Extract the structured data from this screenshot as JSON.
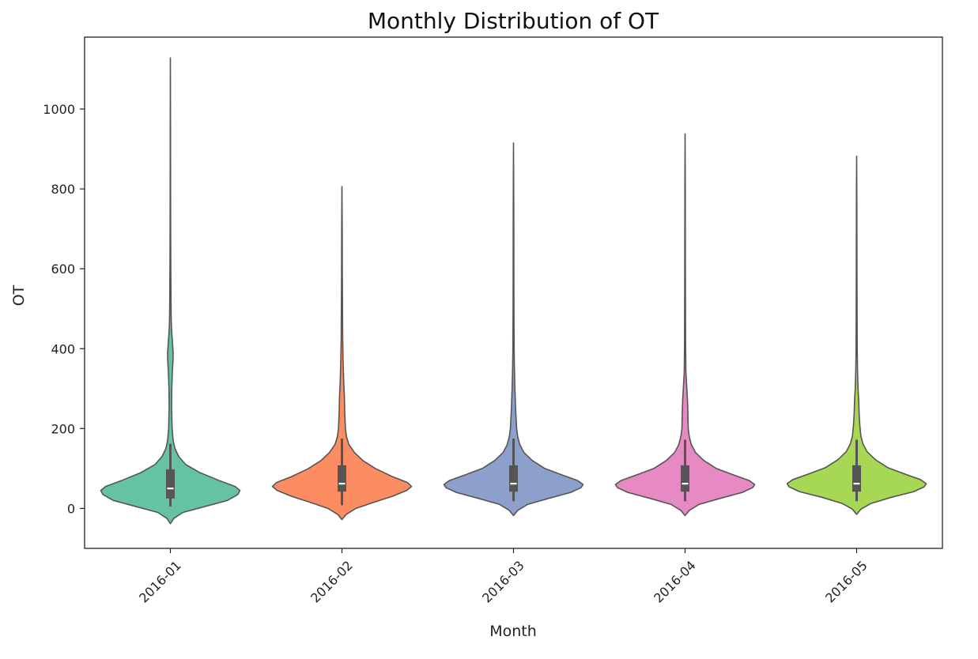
{
  "chart_data": {
    "type": "violin",
    "title": "Monthly Distribution of OT",
    "xlabel": "Month",
    "ylabel": "OT",
    "categories": [
      "2016-01",
      "2016-02",
      "2016-03",
      "2016-04",
      "2016-05"
    ],
    "ylim": [
      -100,
      1180
    ],
    "yticks": [
      0,
      200,
      400,
      600,
      800,
      1000
    ],
    "grid": false,
    "legend": "none",
    "violins": [
      {
        "category": "2016-01",
        "color": "#66c2a5",
        "min": -38,
        "max": 1128,
        "q1": 25,
        "median": 50,
        "q3": 98,
        "whisker_low": 5,
        "whisker_high": 162,
        "profile": [
          [
            -38,
            0
          ],
          [
            -25,
            0.05
          ],
          [
            -10,
            0.18
          ],
          [
            5,
            0.5
          ],
          [
            20,
            0.82
          ],
          [
            35,
            0.97
          ],
          [
            45,
            1.0
          ],
          [
            55,
            0.93
          ],
          [
            70,
            0.7
          ],
          [
            90,
            0.42
          ],
          [
            110,
            0.22
          ],
          [
            130,
            0.12
          ],
          [
            150,
            0.065
          ],
          [
            170,
            0.04
          ],
          [
            200,
            0.025
          ],
          [
            250,
            0.018
          ],
          [
            300,
            0.02
          ],
          [
            340,
            0.028
          ],
          [
            370,
            0.038
          ],
          [
            390,
            0.04
          ],
          [
            410,
            0.032
          ],
          [
            440,
            0.02
          ],
          [
            470,
            0.012
          ],
          [
            520,
            0.009
          ],
          [
            600,
            0.006
          ],
          [
            700,
            0.004
          ],
          [
            800,
            0.003
          ],
          [
            950,
            0.002
          ],
          [
            1128,
            0
          ]
        ]
      },
      {
        "category": "2016-02",
        "color": "#fc8d62",
        "min": -28,
        "max": 806,
        "q1": 42,
        "median": 62,
        "q3": 108,
        "whisker_low": 8,
        "whisker_high": 175,
        "profile": [
          [
            -28,
            0
          ],
          [
            -15,
            0.06
          ],
          [
            0,
            0.2
          ],
          [
            15,
            0.45
          ],
          [
            30,
            0.72
          ],
          [
            45,
            0.93
          ],
          [
            55,
            1.0
          ],
          [
            65,
            0.94
          ],
          [
            80,
            0.72
          ],
          [
            100,
            0.48
          ],
          [
            120,
            0.3
          ],
          [
            140,
            0.18
          ],
          [
            160,
            0.1
          ],
          [
            180,
            0.065
          ],
          [
            200,
            0.05
          ],
          [
            240,
            0.04
          ],
          [
            280,
            0.035
          ],
          [
            320,
            0.025
          ],
          [
            370,
            0.016
          ],
          [
            420,
            0.011
          ],
          [
            500,
            0.008
          ],
          [
            600,
            0.005
          ],
          [
            700,
            0.004
          ],
          [
            806,
            0
          ]
        ]
      },
      {
        "category": "2016-03",
        "color": "#8da0cb",
        "min": -18,
        "max": 915,
        "q1": 42,
        "median": 62,
        "q3": 108,
        "whisker_low": 18,
        "whisker_high": 175,
        "profile": [
          [
            -18,
            0
          ],
          [
            -5,
            0.06
          ],
          [
            10,
            0.2
          ],
          [
            25,
            0.5
          ],
          [
            40,
            0.82
          ],
          [
            52,
            0.97
          ],
          [
            60,
            1.0
          ],
          [
            70,
            0.92
          ],
          [
            85,
            0.68
          ],
          [
            100,
            0.45
          ],
          [
            120,
            0.27
          ],
          [
            140,
            0.15
          ],
          [
            160,
            0.09
          ],
          [
            180,
            0.06
          ],
          [
            200,
            0.045
          ],
          [
            250,
            0.03
          ],
          [
            300,
            0.02
          ],
          [
            350,
            0.013
          ],
          [
            400,
            0.009
          ],
          [
            500,
            0.006
          ],
          [
            600,
            0.005
          ],
          [
            750,
            0.004
          ],
          [
            915,
            0
          ]
        ]
      },
      {
        "category": "2016-04",
        "color": "#e78ac3",
        "min": -18,
        "max": 938,
        "q1": 42,
        "median": 62,
        "q3": 108,
        "whisker_low": 18,
        "whisker_high": 172,
        "profile": [
          [
            -18,
            0
          ],
          [
            -5,
            0.06
          ],
          [
            10,
            0.2
          ],
          [
            25,
            0.5
          ],
          [
            40,
            0.82
          ],
          [
            52,
            0.97
          ],
          [
            60,
            1.0
          ],
          [
            70,
            0.92
          ],
          [
            85,
            0.68
          ],
          [
            100,
            0.45
          ],
          [
            120,
            0.27
          ],
          [
            140,
            0.15
          ],
          [
            160,
            0.09
          ],
          [
            180,
            0.06
          ],
          [
            200,
            0.045
          ],
          [
            240,
            0.04
          ],
          [
            270,
            0.035
          ],
          [
            300,
            0.025
          ],
          [
            340,
            0.012
          ],
          [
            400,
            0.008
          ],
          [
            500,
            0.006
          ],
          [
            650,
            0.004
          ],
          [
            800,
            0.003
          ],
          [
            938,
            0
          ]
        ]
      },
      {
        "category": "2016-05",
        "color": "#a6d854",
        "min": -15,
        "max": 882,
        "q1": 42,
        "median": 62,
        "q3": 108,
        "whisker_low": 18,
        "whisker_high": 172,
        "profile": [
          [
            -15,
            0
          ],
          [
            -2,
            0.06
          ],
          [
            12,
            0.2
          ],
          [
            28,
            0.5
          ],
          [
            42,
            0.82
          ],
          [
            54,
            0.97
          ],
          [
            62,
            1.0
          ],
          [
            72,
            0.92
          ],
          [
            87,
            0.68
          ],
          [
            102,
            0.45
          ],
          [
            122,
            0.27
          ],
          [
            142,
            0.15
          ],
          [
            162,
            0.09
          ],
          [
            182,
            0.06
          ],
          [
            210,
            0.045
          ],
          [
            240,
            0.035
          ],
          [
            270,
            0.03
          ],
          [
            300,
            0.02
          ],
          [
            350,
            0.012
          ],
          [
            400,
            0.008
          ],
          [
            500,
            0.006
          ],
          [
            650,
            0.004
          ],
          [
            780,
            0.003
          ],
          [
            882,
            0
          ]
        ]
      }
    ],
    "outline_color": "#555555",
    "box_color": "#555555"
  }
}
